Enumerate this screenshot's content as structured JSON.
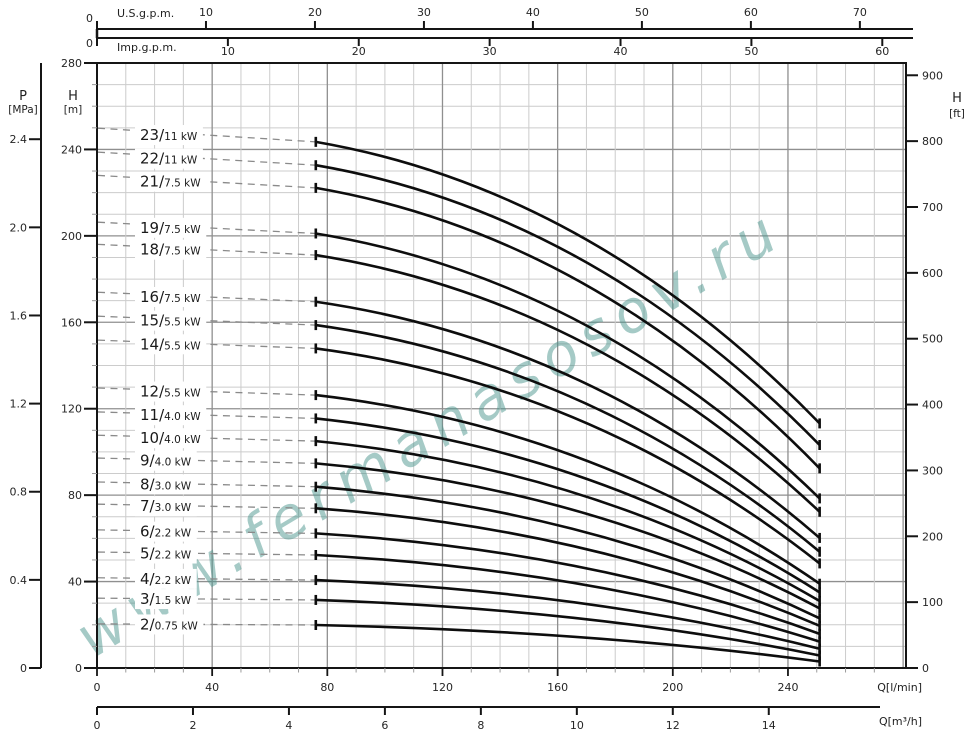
{
  "watermark": {
    "text": "www.fermanasosov.ru",
    "color": "#4d968e",
    "opacity": 0.5
  },
  "colors": {
    "curve": "#0d0d0d",
    "frame": "#151515",
    "grid_minor": "#cccccc",
    "grid_major": "#8f8f8f",
    "leader_dash": "#8a8a8a",
    "tick_text": "#262626"
  },
  "axes": {
    "top_us_gpm": {
      "title": "U.S.g.p.m.",
      "tick_labels": [
        "0",
        "10",
        "20",
        "30",
        "40",
        "50",
        "60",
        "70"
      ]
    },
    "top_imp_gpm": {
      "title": "Imp.g.p.m.",
      "tick_labels": [
        "0",
        "10",
        "20",
        "30",
        "40",
        "50",
        "60"
      ]
    },
    "left_pressure": {
      "title": "P",
      "unit": "[MPa]",
      "tick_labels": [
        "0",
        "0.4",
        "0.8",
        "1.2",
        "1.6",
        "2.0",
        "2.4"
      ]
    },
    "left_head": {
      "title": "H",
      "unit": "[m]",
      "tick_labels": [
        "0",
        "40",
        "80",
        "120",
        "160",
        "200",
        "240",
        "280"
      ]
    },
    "right_head": {
      "title": "H",
      "unit": "[ft]",
      "tick_labels": [
        "0",
        "100",
        "200",
        "300",
        "400",
        "500",
        "600",
        "700",
        "800",
        "900"
      ]
    },
    "bottom_lmin": {
      "title": "Q[l/min]",
      "tick_labels": [
        "0",
        "40",
        "80",
        "120",
        "160",
        "200",
        "240"
      ]
    },
    "bottom_m3h": {
      "title": "Q[m³/h]",
      "tick_labels": [
        "0",
        "2",
        "4",
        "6",
        "8",
        "10",
        "12",
        "14"
      ]
    }
  },
  "chart_data": {
    "type": "line",
    "title": "",
    "x_unit": "l/min",
    "y_unit": "m",
    "xlim": [
      0,
      281
    ],
    "ylim": [
      0,
      280
    ],
    "grid": {
      "x_minor_step": 10,
      "x_major_step": 40,
      "y_minor_step": 10,
      "y_major_step": 40
    },
    "curve_q_start_lmin": 76,
    "curve_q_end_lmin": 251,
    "series": [
      {
        "label": "23/11 kW",
        "stages": "23",
        "power": "11 kW",
        "h_start_m": 243.5,
        "h_end_m": 113.2
      },
      {
        "label": "22/11 kW",
        "stages": "22",
        "power": "11 kW",
        "h_start_m": 232.7,
        "h_end_m": 103.2
      },
      {
        "label": "21/7.5 kW",
        "stages": "21",
        "power": "7.5 kW",
        "h_start_m": 222.2,
        "h_end_m": 92.4
      },
      {
        "label": "19/7.5 kW",
        "stages": "19",
        "power": "7.5 kW",
        "h_start_m": 201.1,
        "h_end_m": 78.5
      },
      {
        "label": "18/7.5 kW",
        "stages": "18",
        "power": "7.5 kW",
        "h_start_m": 191.1,
        "h_end_m": 72.3
      },
      {
        "label": "16/7.5 kW",
        "stages": "16",
        "power": "7.5 kW",
        "h_start_m": 169.5,
        "h_end_m": 60.2
      },
      {
        "label": "15/5.5 kW",
        "stages": "15",
        "power": "5.5 kW",
        "h_start_m": 158.7,
        "h_end_m": 53.8
      },
      {
        "label": "14/5.5 kW",
        "stages": "14",
        "power": "5.5 kW",
        "h_start_m": 147.9,
        "h_end_m": 48.4
      },
      {
        "label": "12/5.5 kW",
        "stages": "12",
        "power": "5.5 kW",
        "h_start_m": 126.3,
        "h_end_m": 39.0
      },
      {
        "label": "11/4.0 kW",
        "stages": "11",
        "power": "4.0 kW",
        "h_start_m": 115.5,
        "h_end_m": 35.0
      },
      {
        "label": "10/4.0 kW",
        "stages": "10",
        "power": "4.0 kW",
        "h_start_m": 105.0,
        "h_end_m": 31.0
      },
      {
        "label": "9/4.0 kW",
        "stages": "9",
        "power": "4.0 kW",
        "h_start_m": 94.7,
        "h_end_m": 27.6
      },
      {
        "label": "8/3.0 kW",
        "stages": "8",
        "power": "3.0 kW",
        "h_start_m": 83.9,
        "h_end_m": 23.0
      },
      {
        "label": "7/3.0 kW",
        "stages": "7",
        "power": "3.0 kW",
        "h_start_m": 73.9,
        "h_end_m": 19.5
      },
      {
        "label": "6/2.2 kW",
        "stages": "6",
        "power": "2.2 kW",
        "h_start_m": 62.3,
        "h_end_m": 15.8
      },
      {
        "label": "5/2.2 kW",
        "stages": "5",
        "power": "2.2 kW",
        "h_start_m": 52.3,
        "h_end_m": 12.2
      },
      {
        "label": "4/2.2 kW",
        "stages": "4",
        "power": "2.2 kW",
        "h_start_m": 40.7,
        "h_end_m": 8.9
      },
      {
        "label": "3/1.5 kW",
        "stages": "3",
        "power": "1.5 kW",
        "h_start_m": 31.5,
        "h_end_m": 5.8
      },
      {
        "label": "2/0.75 kW",
        "stages": "2",
        "power": "0.75 kW",
        "h_start_m": 19.9,
        "h_end_m": 3.0
      }
    ]
  }
}
